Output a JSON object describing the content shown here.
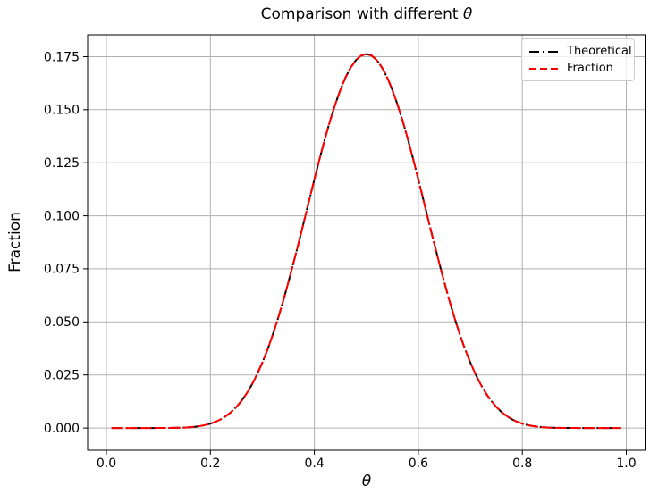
{
  "figure": {
    "background": "#ffffff",
    "title_prefix": "Comparison with different ",
    "title_symbol": "θ"
  },
  "chart_data": {
    "type": "line",
    "title": "Comparison with different θ",
    "xlabel": "θ",
    "ylabel": "Fraction",
    "xlim": [
      -0.0361,
      1.0361
    ],
    "ylim": [
      -0.0105,
      0.1853
    ],
    "grid": true,
    "grid_color": "#b0b0b0",
    "legend": {
      "position": "upper right",
      "entries": [
        "Theoretical",
        "Fraction"
      ]
    },
    "xticks": {
      "values": [
        0.0,
        0.2,
        0.4,
        0.6,
        0.8,
        1.0
      ],
      "labels": [
        "0.0",
        "0.2",
        "0.4",
        "0.6",
        "0.8",
        "1.0"
      ]
    },
    "yticks": {
      "values": [
        0.0,
        0.025,
        0.05,
        0.075,
        0.1,
        0.125,
        0.15,
        0.175
      ],
      "labels": [
        "0.000",
        "0.025",
        "0.050",
        "0.075",
        "0.100",
        "0.125",
        "0.150",
        "0.175"
      ]
    },
    "x": [
      0.01,
      0.02,
      0.03,
      0.04,
      0.05,
      0.06,
      0.07,
      0.08,
      0.09,
      0.1,
      0.11,
      0.12,
      0.13,
      0.14,
      0.15,
      0.16,
      0.17,
      0.18,
      0.19,
      0.2,
      0.21,
      0.22,
      0.23,
      0.24,
      0.25,
      0.26,
      0.27,
      0.28,
      0.29,
      0.3,
      0.31,
      0.32,
      0.33,
      0.34,
      0.35,
      0.36,
      0.37,
      0.38,
      0.39,
      0.4,
      0.41,
      0.42,
      0.43,
      0.44,
      0.45,
      0.46,
      0.47,
      0.48,
      0.49,
      0.5,
      0.51,
      0.52,
      0.53,
      0.54,
      0.55,
      0.56,
      0.57,
      0.58,
      0.59,
      0.6,
      0.61,
      0.62,
      0.63,
      0.64,
      0.65,
      0.66,
      0.67,
      0.68,
      0.69,
      0.7,
      0.71,
      0.72,
      0.73,
      0.74,
      0.75,
      0.76,
      0.77,
      0.78,
      0.79,
      0.8,
      0.81,
      0.82,
      0.83,
      0.84,
      0.85,
      0.86,
      0.87,
      0.88,
      0.89,
      0.9,
      0.91,
      0.92,
      0.93,
      0.94,
      0.95,
      0.96,
      0.97,
      0.98,
      0.99
    ],
    "series": [
      {
        "name": "Theoretical",
        "color": "#000000",
        "linestyle": "dashdot",
        "linewidth": 2,
        "values": [
          0,
          0,
          0,
          0,
          0,
          1e-07,
          3e-07,
          9e-07,
          2.5e-06,
          6.4e-06,
          1.49e-05,
          3.19e-05,
          6.32e-05,
          0.0001183,
          0.0002098,
          0.0003553,
          0.000578,
          0.000907,
          0.001377,
          0.002031,
          0.002919,
          0.00409,
          0.005609,
          0.007531,
          0.009922,
          0.012842,
          0.016345,
          0.020489,
          0.025304,
          0.030817,
          0.037046,
          0.043973,
          0.051582,
          0.059818,
          0.068618,
          0.07788,
          0.087486,
          0.097354,
          0.107265,
          0.117142,
          0.126773,
          0.135948,
          0.144582,
          0.152405,
          0.15935,
          0.16524,
          0.169936,
          0.173398,
          0.175493,
          0.176197,
          0.175493,
          0.173398,
          0.169936,
          0.16524,
          0.15935,
          0.152405,
          0.144582,
          0.135948,
          0.126773,
          0.117142,
          0.107265,
          0.097354,
          0.087486,
          0.07788,
          0.068618,
          0.059818,
          0.051582,
          0.043973,
          0.037046,
          0.030817,
          0.025304,
          0.020489,
          0.016345,
          0.012842,
          0.009922,
          0.007531,
          0.005609,
          0.00409,
          0.002919,
          0.002031,
          0.001377,
          0.000907,
          0.000578,
          0.0003553,
          0.0002098,
          0.0001183,
          6.32e-05,
          3.19e-05,
          1.49e-05,
          6.4e-06,
          2.5e-06,
          9e-07,
          3e-07,
          1e-07,
          0,
          0,
          0,
          0,
          0
        ]
      },
      {
        "name": "Fraction",
        "color": "#ff0000",
        "linestyle": "dashed",
        "linewidth": 2,
        "values": [
          0,
          0,
          0,
          0,
          0,
          1e-07,
          3e-07,
          9e-07,
          2.5e-06,
          6.4e-06,
          1.49e-05,
          3.19e-05,
          6.32e-05,
          0.0001183,
          0.0002098,
          0.0003553,
          0.000578,
          0.000907,
          0.001377,
          0.002031,
          0.002919,
          0.00409,
          0.005609,
          0.007531,
          0.009922,
          0.012842,
          0.016345,
          0.020489,
          0.025304,
          0.030817,
          0.037046,
          0.043973,
          0.051582,
          0.059818,
          0.068618,
          0.07788,
          0.087486,
          0.097354,
          0.107265,
          0.117142,
          0.126773,
          0.135948,
          0.144582,
          0.152405,
          0.15935,
          0.16524,
          0.169936,
          0.173398,
          0.175493,
          0.176197,
          0.175493,
          0.173398,
          0.169936,
          0.16524,
          0.15935,
          0.152405,
          0.144582,
          0.135948,
          0.126773,
          0.117142,
          0.107265,
          0.097354,
          0.087486,
          0.07788,
          0.068618,
          0.059818,
          0.051582,
          0.043973,
          0.037046,
          0.030817,
          0.025304,
          0.020489,
          0.016345,
          0.012842,
          0.009922,
          0.007531,
          0.005609,
          0.00409,
          0.002919,
          0.002031,
          0.001377,
          0.000907,
          0.000578,
          0.0003553,
          0.0002098,
          0.0001183,
          6.32e-05,
          3.19e-05,
          1.49e-05,
          6.4e-06,
          2.5e-06,
          9e-07,
          3e-07,
          1e-07,
          0,
          0,
          0,
          0,
          0
        ]
      }
    ]
  }
}
